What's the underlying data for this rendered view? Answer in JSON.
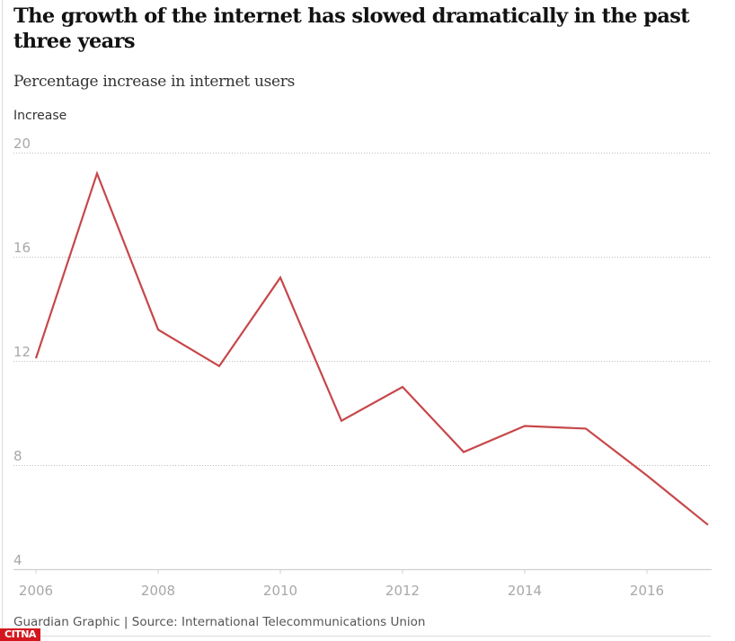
{
  "header": {
    "title": "The growth of the internet has slowed dramatically in the past three years",
    "subtitle": "Percentage increase in internet users"
  },
  "footer": {
    "source": "Guardian Graphic | Source: International Telecommunications Union"
  },
  "watermark": {
    "label": "CITNA"
  },
  "colors": {
    "line": "#c7474b",
    "grid": "#bdbdbd",
    "axis": "#d0d0d0",
    "tick_label": "#a8a8a8"
  },
  "chart_data": {
    "type": "line",
    "title": "The growth of the internet has slowed dramatically in the past three years",
    "subtitle": "Percentage increase in internet users",
    "xlabel": "",
    "ylabel": "Increase",
    "x": [
      2006,
      2007,
      2008,
      2009,
      2010,
      2011,
      2012,
      2013,
      2014,
      2015,
      2016,
      2017
    ],
    "series": [
      {
        "name": "Percentage increase in internet users",
        "values": [
          12.1,
          19.2,
          13.2,
          11.8,
          15.2,
          9.7,
          11.0,
          8.5,
          9.5,
          9.4,
          7.6,
          5.7
        ]
      }
    ],
    "xlim": [
      2006,
      2017
    ],
    "ylim": [
      4,
      20
    ],
    "yticks": [
      4,
      8,
      12,
      16,
      20
    ],
    "xticks": [
      2006,
      2008,
      2010,
      2012,
      2014,
      2016
    ],
    "grid": "horizontal dotted",
    "legend": "none",
    "source": "Guardian Graphic | Source: International Telecommunications Union"
  }
}
